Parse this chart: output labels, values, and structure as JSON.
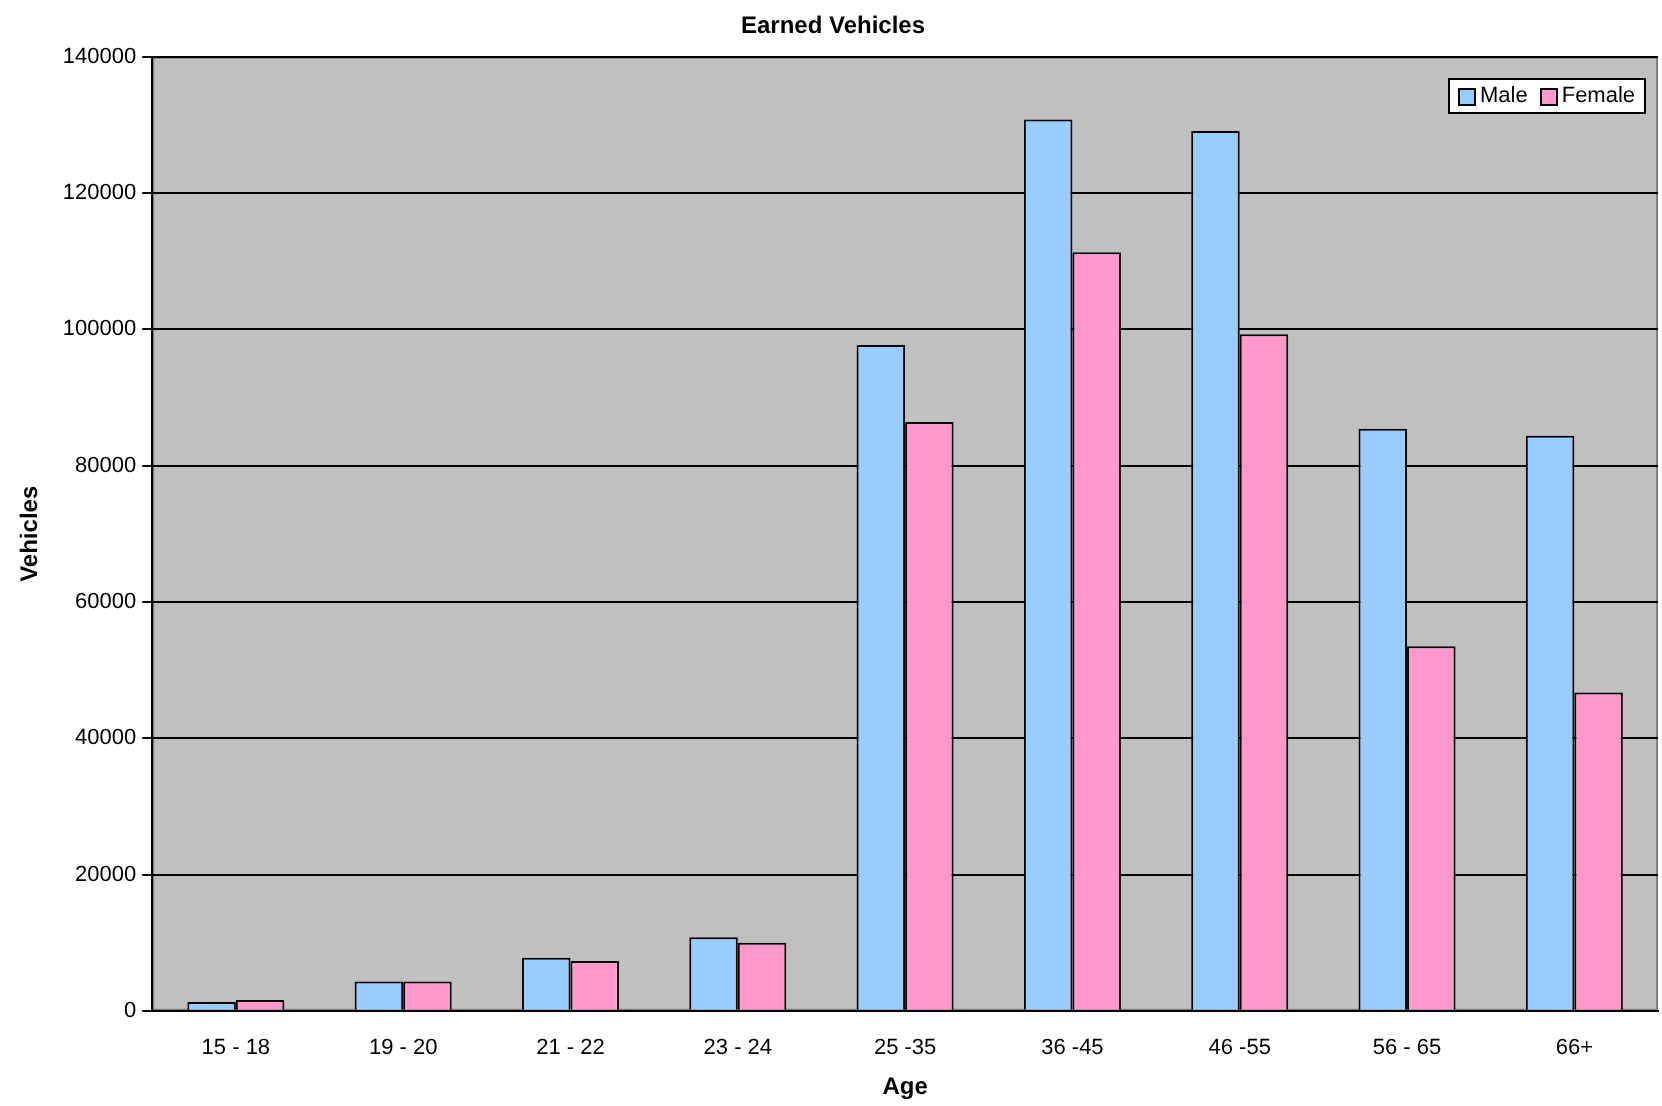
{
  "chart_data": {
    "type": "bar",
    "title": "Earned Vehicles",
    "xlabel": "Age",
    "ylabel": "Vehicles",
    "categories": [
      "15 - 18",
      "19 - 20",
      "21 - 22",
      "23 - 24",
      "25 -35",
      "36 -45",
      "46 -55",
      "56 - 65",
      "66+"
    ],
    "series": [
      {
        "name": "Male",
        "color": "#99ccff",
        "values": [
          1300,
          4300,
          7800,
          10800,
          97700,
          130800,
          129100,
          85400,
          84400
        ]
      },
      {
        "name": "Female",
        "color": "#ff99cc",
        "values": [
          1600,
          4300,
          7300,
          10000,
          86400,
          111300,
          99300,
          53500,
          46700
        ]
      }
    ],
    "ylim": [
      0,
      140000
    ],
    "yticks": [
      0,
      20000,
      40000,
      60000,
      80000,
      100000,
      120000,
      140000
    ],
    "grid": "y",
    "legend": "top right"
  }
}
